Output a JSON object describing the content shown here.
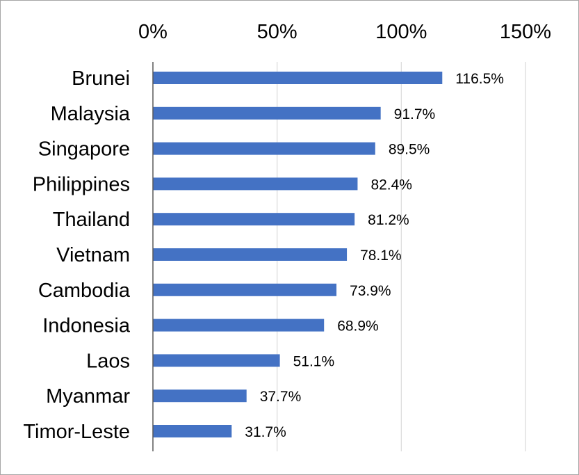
{
  "chart_data": {
    "type": "bar",
    "orientation": "horizontal",
    "categories": [
      "Brunei",
      "Malaysia",
      "Singapore",
      "Philippines",
      "Thailand",
      "Vietnam",
      "Cambodia",
      "Indonesia",
      "Laos",
      "Myanmar",
      "Timor-Leste"
    ],
    "values": [
      116.5,
      91.7,
      89.5,
      82.4,
      81.2,
      78.1,
      73.9,
      68.9,
      51.1,
      37.7,
      31.7
    ],
    "data_labels": [
      "116.5%",
      "91.7%",
      "89.5%",
      "82.4%",
      "81.2%",
      "78.1%",
      "73.9%",
      "68.9%",
      "51.1%",
      "37.7%",
      "31.7%"
    ],
    "xticks": [
      0,
      50,
      100,
      150
    ],
    "xtick_labels": [
      "0%",
      "50%",
      "100%",
      "150%"
    ],
    "xlim": [
      0,
      150
    ],
    "x_axis_position": "top",
    "grid": true,
    "legend": "none",
    "title": "",
    "xlabel": "",
    "ylabel": "",
    "colors": {
      "bar": "#4472c4",
      "grid": "#d9d9d9",
      "axis": "#595959",
      "border": "#a6a6a6"
    }
  }
}
